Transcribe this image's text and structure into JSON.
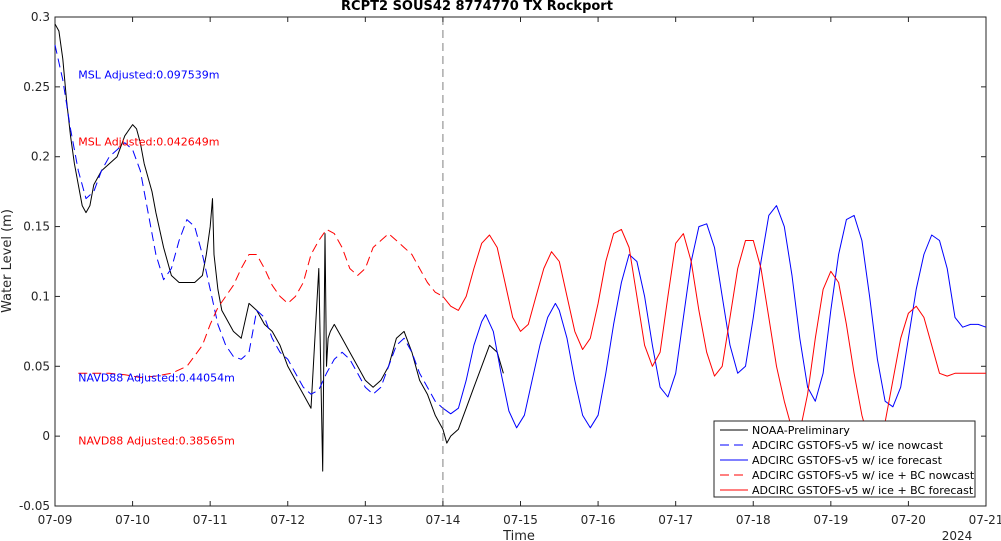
{
  "chart_data": {
    "type": "line",
    "title": "RCPT2 SOUS42 8774770 TX Rockport",
    "xlabel": "Time",
    "ylabel": "Water Level (m)",
    "year_label": "2024",
    "xlim": [
      0,
      12
    ],
    "ylim": [
      -0.05,
      0.3
    ],
    "x_ticks": [
      0,
      1,
      2,
      3,
      4,
      5,
      6,
      7,
      8,
      9,
      10,
      11,
      12
    ],
    "x_tick_labels": [
      "07-09",
      "07-10",
      "07-11",
      "07-12",
      "07-13",
      "07-14",
      "07-15",
      "07-16",
      "07-17",
      "07-18",
      "07-19",
      "07-20",
      "07-21"
    ],
    "y_ticks": [
      -0.05,
      0,
      0.05,
      0.1,
      0.15,
      0.2,
      0.25,
      0.3
    ],
    "y_tick_labels": [
      "-0.05",
      "0",
      "0.05",
      "0.1",
      "0.15",
      "0.2",
      "0.25",
      "0.3"
    ],
    "grid": false,
    "legend_position": "bottom-right",
    "nowcast_divider_x": 5,
    "annotations": [
      {
        "text": "MSL Adjusted:0.097539m",
        "color": "#0000ff",
        "x": 0.3,
        "y": 0.256
      },
      {
        "text": "MSL Adjusted:0.042649m",
        "color": "#ff0000",
        "x": 0.3,
        "y": 0.208
      },
      {
        "text": "NAVD88 Adjusted:0.44054m",
        "color": "#0000ff",
        "x": 0.3,
        "y": 0.039
      },
      {
        "text": "NAVD88 Adjusted:0.38565m",
        "color": "#ff0000",
        "x": 0.3,
        "y": -0.006
      }
    ],
    "series": [
      {
        "name": "NOAA-Preliminary",
        "color": "#000000",
        "dash": "solid",
        "x": [
          0,
          0.05,
          0.1,
          0.15,
          0.2,
          0.25,
          0.3,
          0.35,
          0.4,
          0.45,
          0.5,
          0.6,
          0.7,
          0.8,
          0.9,
          1.0,
          1.05,
          1.1,
          1.15,
          1.2,
          1.25,
          1.3,
          1.4,
          1.5,
          1.6,
          1.7,
          1.8,
          1.9,
          1.95,
          2.0,
          2.03,
          2.05,
          2.1,
          2.15,
          2.2,
          2.3,
          2.4,
          2.5,
          2.6,
          2.7,
          2.8,
          2.9,
          3.0,
          3.1,
          3.2,
          3.3,
          3.4,
          3.45,
          3.48,
          3.5,
          3.52,
          3.55,
          3.6,
          3.7,
          3.8,
          3.9,
          4.0,
          4.1,
          4.2,
          4.3,
          4.4,
          4.5,
          4.6,
          4.7,
          4.8,
          4.9,
          5.0,
          5.05,
          5.1,
          5.2,
          5.3,
          5.4,
          5.5,
          5.6,
          5.7,
          5.78
        ],
        "y": [
          0.295,
          0.29,
          0.27,
          0.24,
          0.215,
          0.195,
          0.18,
          0.165,
          0.16,
          0.165,
          0.18,
          0.19,
          0.195,
          0.2,
          0.215,
          0.223,
          0.22,
          0.21,
          0.195,
          0.185,
          0.175,
          0.16,
          0.135,
          0.115,
          0.11,
          0.11,
          0.11,
          0.115,
          0.13,
          0.15,
          0.17,
          0.13,
          0.105,
          0.09,
          0.085,
          0.075,
          0.07,
          0.095,
          0.09,
          0.08,
          0.075,
          0.065,
          0.05,
          0.04,
          0.03,
          0.02,
          0.12,
          -0.025,
          0.145,
          0.05,
          0.07,
          0.075,
          0.08,
          0.07,
          0.06,
          0.05,
          0.04,
          0.035,
          0.04,
          0.05,
          0.07,
          0.075,
          0.06,
          0.04,
          0.03,
          0.015,
          0.005,
          -0.005,
          0.0,
          0.005,
          0.02,
          0.035,
          0.05,
          0.065,
          0.06,
          0.045
        ]
      },
      {
        "name": "ADCIRC GSTOFS-v5 w/ ice nowcast",
        "color": "#0000ff",
        "dash": "dashed",
        "x": [
          0,
          0.1,
          0.2,
          0.3,
          0.4,
          0.5,
          0.6,
          0.7,
          0.8,
          0.9,
          1.0,
          1.1,
          1.2,
          1.3,
          1.4,
          1.5,
          1.6,
          1.7,
          1.8,
          1.9,
          2.0,
          2.1,
          2.2,
          2.3,
          2.4,
          2.5,
          2.6,
          2.7,
          2.8,
          2.9,
          3.0,
          3.1,
          3.2,
          3.3,
          3.4,
          3.5,
          3.6,
          3.7,
          3.8,
          3.9,
          4.0,
          4.1,
          4.2,
          4.3,
          4.4,
          4.5,
          4.6,
          4.7,
          4.8,
          4.9,
          5.0
        ],
        "y": [
          0.28,
          0.255,
          0.22,
          0.19,
          0.17,
          0.175,
          0.19,
          0.2,
          0.205,
          0.21,
          0.205,
          0.19,
          0.16,
          0.13,
          0.112,
          0.12,
          0.14,
          0.155,
          0.15,
          0.13,
          0.105,
          0.08,
          0.065,
          0.057,
          0.055,
          0.06,
          0.09,
          0.085,
          0.07,
          0.06,
          0.055,
          0.045,
          0.035,
          0.03,
          0.033,
          0.045,
          0.055,
          0.06,
          0.055,
          0.045,
          0.035,
          0.03,
          0.035,
          0.05,
          0.065,
          0.07,
          0.06,
          0.045,
          0.035,
          0.025,
          0.02
        ]
      },
      {
        "name": "ADCIRC GSTOFS-v5 w/ ice forecast",
        "color": "#0000ff",
        "dash": "solid",
        "x": [
          5.0,
          5.1,
          5.2,
          5.3,
          5.4,
          5.5,
          5.55,
          5.65,
          5.75,
          5.85,
          5.95,
          6.05,
          6.15,
          6.25,
          6.35,
          6.45,
          6.5,
          6.6,
          6.7,
          6.8,
          6.9,
          7.0,
          7.1,
          7.2,
          7.3,
          7.4,
          7.5,
          7.6,
          7.7,
          7.8,
          7.9,
          8.0,
          8.1,
          8.2,
          8.3,
          8.4,
          8.5,
          8.6,
          8.7,
          8.8,
          8.9,
          9.0,
          9.1,
          9.2,
          9.3,
          9.4,
          9.5,
          9.6,
          9.7,
          9.8,
          9.9,
          10.0,
          10.1,
          10.2,
          10.3,
          10.4,
          10.5,
          10.6,
          10.7,
          10.8,
          10.9,
          11.0,
          11.1,
          11.2,
          11.3,
          11.4,
          11.5,
          11.6,
          11.7,
          11.8,
          11.9,
          12.0
        ],
        "y": [
          0.02,
          0.016,
          0.02,
          0.04,
          0.065,
          0.082,
          0.087,
          0.075,
          0.045,
          0.018,
          0.006,
          0.015,
          0.04,
          0.065,
          0.085,
          0.095,
          0.09,
          0.07,
          0.04,
          0.015,
          0.006,
          0.015,
          0.045,
          0.08,
          0.11,
          0.13,
          0.125,
          0.1,
          0.065,
          0.035,
          0.028,
          0.045,
          0.085,
          0.125,
          0.15,
          0.152,
          0.135,
          0.1,
          0.065,
          0.045,
          0.05,
          0.085,
          0.125,
          0.158,
          0.165,
          0.15,
          0.115,
          0.07,
          0.035,
          0.025,
          0.045,
          0.09,
          0.13,
          0.155,
          0.158,
          0.14,
          0.1,
          0.055,
          0.025,
          0.021,
          0.035,
          0.07,
          0.105,
          0.13,
          0.144,
          0.14,
          0.12,
          0.085,
          0.078,
          0.08,
          0.08,
          0.078
        ]
      },
      {
        "name": "ADCIRC GSTOFS-v5 w/ ice + BC nowcast",
        "color": "#ff0000",
        "dash": "dashed",
        "x": [
          0.3,
          0.5,
          0.7,
          0.9,
          1.1,
          1.3,
          1.5,
          1.7,
          1.9,
          2.0,
          2.1,
          2.2,
          2.3,
          2.4,
          2.5,
          2.6,
          2.7,
          2.8,
          2.9,
          3.0,
          3.1,
          3.2,
          3.3,
          3.4,
          3.5,
          3.6,
          3.7,
          3.8,
          3.9,
          4.0,
          4.1,
          4.2,
          4.3,
          4.4,
          4.5,
          4.6,
          4.7,
          4.8,
          4.9,
          5.0
        ],
        "y": [
          0.045,
          0.045,
          0.045,
          0.044,
          0.042,
          0.043,
          0.045,
          0.05,
          0.065,
          0.08,
          0.092,
          0.1,
          0.108,
          0.12,
          0.13,
          0.13,
          0.12,
          0.108,
          0.1,
          0.095,
          0.1,
          0.11,
          0.13,
          0.14,
          0.148,
          0.145,
          0.135,
          0.12,
          0.115,
          0.12,
          0.135,
          0.14,
          0.145,
          0.14,
          0.135,
          0.13,
          0.12,
          0.11,
          0.103,
          0.1
        ]
      },
      {
        "name": "ADCIRC GSTOFS-v5 w/ ice + BC forecast",
        "color": "#ff0000",
        "dash": "solid",
        "x": [
          5.0,
          5.1,
          5.2,
          5.3,
          5.4,
          5.5,
          5.6,
          5.7,
          5.8,
          5.9,
          6.0,
          6.1,
          6.2,
          6.3,
          6.4,
          6.5,
          6.6,
          6.7,
          6.8,
          6.9,
          7.0,
          7.1,
          7.2,
          7.3,
          7.4,
          7.5,
          7.6,
          7.7,
          7.8,
          7.9,
          8.0,
          8.1,
          8.2,
          8.3,
          8.4,
          8.5,
          8.6,
          8.7,
          8.8,
          8.9,
          9.0,
          9.1,
          9.2,
          9.3,
          9.4,
          9.5,
          9.6,
          9.7,
          9.8,
          9.9,
          10.0,
          10.1,
          10.2,
          10.3,
          10.4,
          10.5,
          10.6,
          10.7,
          10.8,
          10.9,
          11.0,
          11.1,
          11.2,
          11.3,
          11.4,
          11.5,
          11.6,
          11.7,
          11.8,
          11.9,
          12.0
        ],
        "y": [
          0.1,
          0.093,
          0.09,
          0.1,
          0.12,
          0.138,
          0.144,
          0.135,
          0.11,
          0.085,
          0.075,
          0.08,
          0.1,
          0.12,
          0.132,
          0.125,
          0.1,
          0.075,
          0.062,
          0.07,
          0.095,
          0.125,
          0.145,
          0.148,
          0.135,
          0.1,
          0.065,
          0.05,
          0.06,
          0.1,
          0.138,
          0.145,
          0.125,
          0.09,
          0.06,
          0.043,
          0.05,
          0.085,
          0.12,
          0.14,
          0.14,
          0.12,
          0.085,
          0.05,
          0.025,
          0.005,
          0.003,
          0.03,
          0.07,
          0.105,
          0.118,
          0.11,
          0.08,
          0.045,
          0.015,
          -0.005,
          -0.008,
          0.01,
          0.04,
          0.07,
          0.088,
          0.093,
          0.085,
          0.065,
          0.045,
          0.043,
          0.045,
          0.045,
          0.045,
          0.045,
          0.045
        ]
      }
    ]
  }
}
